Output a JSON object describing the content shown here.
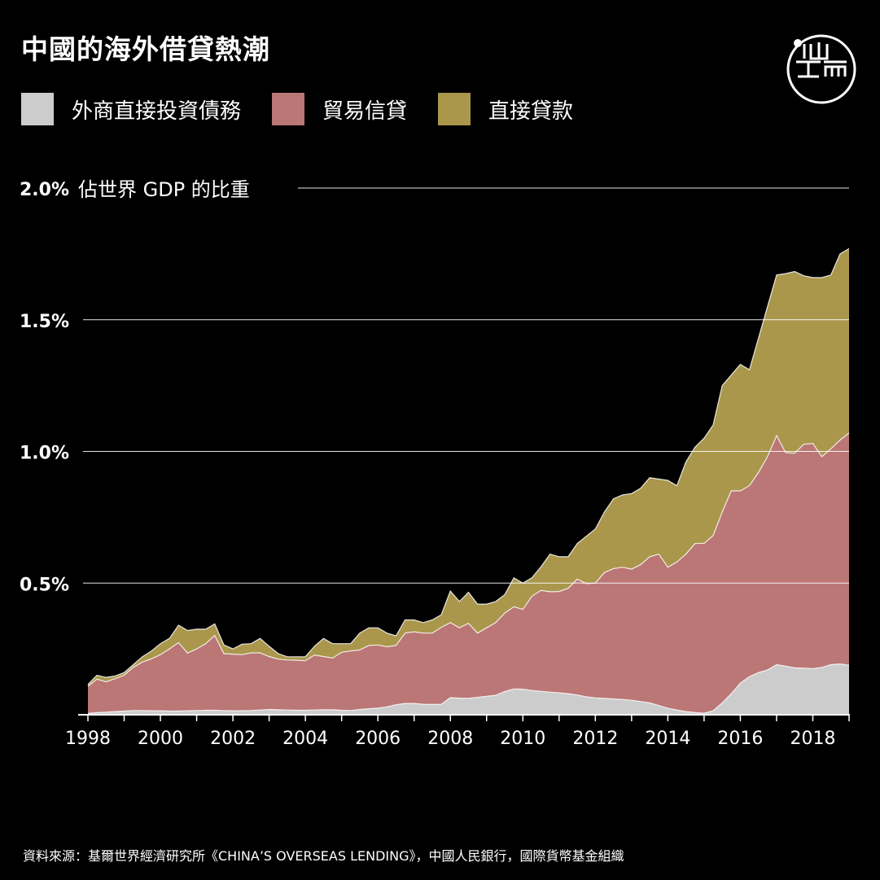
{
  "header": {
    "title": "中國的海外借貸熱潮"
  },
  "logo": {
    "icon": "端-logo-icon",
    "text": "端"
  },
  "legend": [
    {
      "label": "外商直接投資債務",
      "color": "#cccccc"
    },
    {
      "label": "貿易信貸",
      "color": "#bb7676"
    },
    {
      "label": "直接貸款",
      "color": "#aa974c"
    }
  ],
  "chart_data": {
    "type": "area",
    "stacked": true,
    "ylabel": "佔世界 GDP 的比重",
    "ylim": [
      0,
      2.0
    ],
    "yticks": [
      {
        "value": 2.0,
        "label": "2.0%"
      },
      {
        "value": 1.5,
        "label": "1.5%"
      },
      {
        "value": 1.0,
        "label": "1.0%"
      },
      {
        "value": 0.5,
        "label": "0.5%"
      }
    ],
    "xlim": [
      1998,
      2019
    ],
    "xticks": [
      {
        "value": 1998,
        "label": "1998"
      },
      {
        "value": 2000,
        "label": "2000"
      },
      {
        "value": 2002,
        "label": "2002"
      },
      {
        "value": 2004,
        "label": "2004"
      },
      {
        "value": 2006,
        "label": "2006"
      },
      {
        "value": 2008,
        "label": "2008"
      },
      {
        "value": 2010,
        "label": "2010"
      },
      {
        "value": 2012,
        "label": "2012"
      },
      {
        "value": 2014,
        "label": "2014"
      },
      {
        "value": 2016,
        "label": "2016"
      },
      {
        "value": 2018,
        "label": "2018"
      }
    ],
    "grid": true,
    "x": [
      1998.0,
      1998.25,
      1998.5,
      1998.75,
      1999.0,
      1999.25,
      1999.5,
      1999.75,
      2000.0,
      2000.25,
      2000.5,
      2000.75,
      2001.0,
      2001.25,
      2001.5,
      2001.75,
      2002.0,
      2002.25,
      2002.5,
      2002.75,
      2003.0,
      2003.25,
      2003.5,
      2003.75,
      2004.0,
      2004.25,
      2004.5,
      2004.75,
      2005.0,
      2005.25,
      2005.5,
      2005.75,
      2006.0,
      2006.25,
      2006.5,
      2006.75,
      2007.0,
      2007.25,
      2007.5,
      2007.75,
      2008.0,
      2008.25,
      2008.5,
      2008.75,
      2009.0,
      2009.25,
      2009.5,
      2009.75,
      2010.0,
      2010.25,
      2010.5,
      2010.75,
      2011.0,
      2011.25,
      2011.5,
      2011.75,
      2012.0,
      2012.25,
      2012.5,
      2012.75,
      2013.0,
      2013.25,
      2013.5,
      2013.75,
      2014.0,
      2014.25,
      2014.5,
      2014.75,
      2015.0,
      2015.25,
      2015.5,
      2015.75,
      2016.0,
      2016.25,
      2016.5,
      2016.75,
      2017.0,
      2017.25,
      2017.5,
      2017.75,
      2018.0,
      2018.25,
      2018.5,
      2018.75,
      2019.0
    ],
    "series": [
      {
        "name": "外商直接投資債務",
        "values": [
          0.005,
          0.008,
          0.01,
          0.012,
          0.014,
          0.016,
          0.016,
          0.015,
          0.015,
          0.014,
          0.014,
          0.015,
          0.016,
          0.017,
          0.017,
          0.016,
          0.015,
          0.015,
          0.016,
          0.018,
          0.02,
          0.019,
          0.018,
          0.017,
          0.017,
          0.018,
          0.019,
          0.019,
          0.017,
          0.016,
          0.02,
          0.023,
          0.025,
          0.03,
          0.038,
          0.043,
          0.043,
          0.04,
          0.039,
          0.04,
          0.065,
          0.063,
          0.062,
          0.066,
          0.07,
          0.074,
          0.088,
          0.098,
          0.097,
          0.092,
          0.089,
          0.086,
          0.083,
          0.08,
          0.075,
          0.068,
          0.064,
          0.062,
          0.06,
          0.058,
          0.055,
          0.05,
          0.045,
          0.035,
          0.025,
          0.018,
          0.012,
          0.008,
          0.006,
          0.015,
          0.045,
          0.08,
          0.12,
          0.145,
          0.16,
          0.17,
          0.19,
          0.185,
          0.178,
          0.177,
          0.175,
          0.18,
          0.19,
          0.193,
          0.188
        ]
      },
      {
        "name": "貿易信貸",
        "values": [
          0.103,
          0.127,
          0.115,
          0.125,
          0.136,
          0.164,
          0.184,
          0.197,
          0.213,
          0.236,
          0.26,
          0.219,
          0.234,
          0.253,
          0.284,
          0.216,
          0.215,
          0.213,
          0.219,
          0.217,
          0.201,
          0.192,
          0.19,
          0.19,
          0.188,
          0.209,
          0.202,
          0.196,
          0.22,
          0.226,
          0.226,
          0.24,
          0.24,
          0.228,
          0.225,
          0.267,
          0.272,
          0.27,
          0.271,
          0.292,
          0.285,
          0.267,
          0.285,
          0.244,
          0.26,
          0.276,
          0.298,
          0.312,
          0.303,
          0.358,
          0.383,
          0.381,
          0.385,
          0.4,
          0.44,
          0.43,
          0.436,
          0.478,
          0.495,
          0.502,
          0.498,
          0.52,
          0.555,
          0.575,
          0.535,
          0.562,
          0.598,
          0.642,
          0.645,
          0.665,
          0.725,
          0.77,
          0.73,
          0.725,
          0.76,
          0.81,
          0.87,
          0.81,
          0.815,
          0.85,
          0.855,
          0.8,
          0.82,
          0.85,
          0.882
        ]
      },
      {
        "name": "直接貸款",
        "values": [
          0.007,
          0.015,
          0.017,
          0.01,
          0.01,
          0.01,
          0.02,
          0.03,
          0.042,
          0.04,
          0.066,
          0.086,
          0.075,
          0.055,
          0.044,
          0.033,
          0.02,
          0.04,
          0.035,
          0.055,
          0.039,
          0.021,
          0.012,
          0.013,
          0.015,
          0.033,
          0.069,
          0.055,
          0.033,
          0.028,
          0.064,
          0.067,
          0.065,
          0.052,
          0.037,
          0.05,
          0.045,
          0.04,
          0.05,
          0.048,
          0.12,
          0.1,
          0.118,
          0.11,
          0.09,
          0.08,
          0.07,
          0.11,
          0.1,
          0.07,
          0.09,
          0.143,
          0.132,
          0.12,
          0.135,
          0.18,
          0.205,
          0.23,
          0.265,
          0.275,
          0.287,
          0.29,
          0.3,
          0.285,
          0.33,
          0.29,
          0.35,
          0.366,
          0.399,
          0.42,
          0.48,
          0.44,
          0.48,
          0.44,
          0.51,
          0.57,
          0.61,
          0.68,
          0.69,
          0.64,
          0.63,
          0.68,
          0.66,
          0.707,
          0.7
        ]
      }
    ]
  },
  "footer": {
    "source": "資料來源：基爾世界經濟研究所《CHINA’S OVERSEAS LENDING》，中國人民銀行，國際貨幣基金組織"
  }
}
